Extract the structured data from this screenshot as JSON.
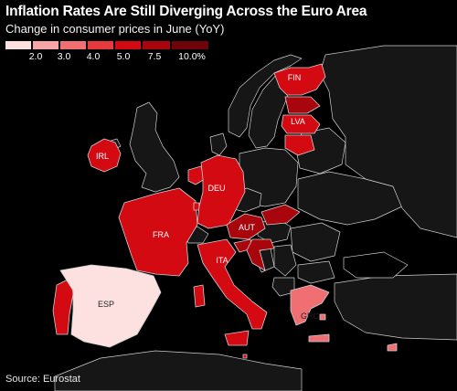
{
  "title": "Inflation Rates Are Still Diverging Across the Euro Area",
  "subtitle": "Change in consumer prices in June (YoY)",
  "source": "Source: Eurostat",
  "legend": {
    "bins": [
      {
        "label": "",
        "color": "#fde0e0"
      },
      {
        "label": "2.0",
        "color": "#f7a6a8"
      },
      {
        "label": "3.0",
        "color": "#ef6f72"
      },
      {
        "label": "4.0",
        "color": "#e63a3f"
      },
      {
        "label": "5.0",
        "color": "#d40a12"
      },
      {
        "label": "7.5",
        "color": "#a8060c"
      },
      {
        "label": "10.0%",
        "color": "#6e0308"
      }
    ]
  },
  "colors": {
    "background": "#000000",
    "non_euro_land": "#161616",
    "border": "#cfcfcf"
  },
  "countries": [
    {
      "id": "IRL",
      "label": "IRL",
      "bin": 4
    },
    {
      "id": "ESP",
      "label": "ESP",
      "bin": 0
    },
    {
      "id": "PRT",
      "label": "",
      "bin": 4
    },
    {
      "id": "FRA",
      "label": "FRA",
      "bin": 4
    },
    {
      "id": "BEL",
      "label": "",
      "bin": 0
    },
    {
      "id": "NLD",
      "label": "",
      "bin": 4
    },
    {
      "id": "LUX",
      "label": "",
      "bin": 4
    },
    {
      "id": "DEU",
      "label": "DEU",
      "bin": 4
    },
    {
      "id": "AUT",
      "label": "AUT",
      "bin": 5
    },
    {
      "id": "SVK",
      "label": "",
      "bin": 5
    },
    {
      "id": "SVN",
      "label": "",
      "bin": 5
    },
    {
      "id": "HRV",
      "label": "",
      "bin": 5
    },
    {
      "id": "ITA",
      "label": "ITA",
      "bin": 4
    },
    {
      "id": "SIC",
      "label": "",
      "bin": 4
    },
    {
      "id": "SAR",
      "label": "",
      "bin": 4
    },
    {
      "id": "MLT",
      "label": "",
      "bin": 4
    },
    {
      "id": "GRC",
      "label": "GRC",
      "bin": 2
    },
    {
      "id": "CYP",
      "label": "",
      "bin": 2
    },
    {
      "id": "FIN",
      "label": "FIN",
      "bin": 4
    },
    {
      "id": "EST",
      "label": "",
      "bin": 5
    },
    {
      "id": "LVA",
      "label": "LVA",
      "bin": 4
    },
    {
      "id": "LTU",
      "label": "",
      "bin": 4
    }
  ]
}
